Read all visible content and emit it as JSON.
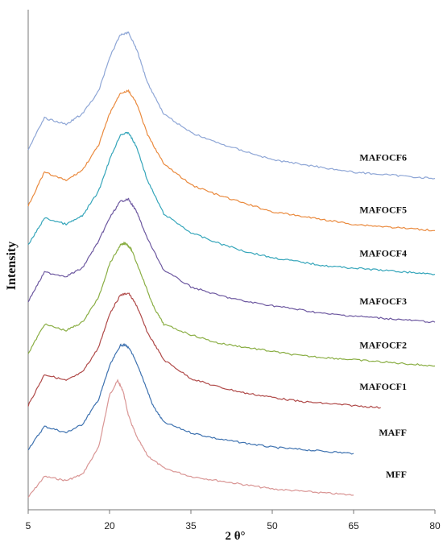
{
  "chart_data": {
    "type": "line",
    "title": "",
    "xlabel": "2 θ°",
    "ylabel": "Intensity",
    "xlim": [
      5,
      80
    ],
    "x_ticks": [
      "5",
      "20",
      "35",
      "50",
      "65",
      "80"
    ],
    "x_tick_values": [
      5,
      20,
      35,
      50,
      65,
      80
    ],
    "grid": false,
    "legend": "none",
    "series": [
      {
        "name": "MFF",
        "color": "#d99594",
        "x": [
          5,
          8,
          12,
          15,
          18,
          20,
          21.5,
          22.5,
          23.5,
          25,
          27,
          30,
          35,
          40,
          45,
          50,
          55,
          60,
          65
        ],
        "y": [
          6,
          16,
          14,
          17,
          30,
          55,
          62,
          57,
          45,
          35,
          26,
          20,
          16,
          14,
          12,
          10,
          9,
          8,
          7
        ]
      },
      {
        "name": "MAFF",
        "color": "#3e72b0",
        "x": [
          5,
          8,
          12,
          15,
          18,
          20,
          22,
          23,
          24,
          26,
          28,
          30,
          35,
          40,
          45,
          50,
          55,
          60,
          65
        ],
        "y": [
          29,
          40,
          37,
          41,
          53,
          69,
          79,
          79,
          76,
          64,
          50,
          42,
          37,
          34,
          32,
          30,
          29,
          28,
          27
        ]
      },
      {
        "name": "MAFOCF1",
        "color": "#b04a49",
        "x": [
          5,
          8,
          12,
          15,
          18,
          20,
          22,
          23.5,
          25,
          27,
          30,
          35,
          40,
          45,
          50,
          55,
          60,
          65,
          70
        ],
        "y": [
          50,
          65,
          62,
          66,
          78,
          94,
          103,
          104,
          98,
          85,
          72,
          63,
          59,
          56,
          54,
          52,
          51,
          50,
          49
        ]
      },
      {
        "name": "MAFOCF2",
        "color": "#8aae44",
        "x": [
          5,
          8,
          12,
          15,
          18,
          20,
          22,
          23,
          24,
          26,
          28,
          30,
          35,
          40,
          45,
          50,
          55,
          60,
          65,
          70,
          75,
          80
        ],
        "y": [
          75,
          89,
          86,
          90,
          102,
          118,
          127,
          128,
          125,
          112,
          98,
          89,
          84,
          80,
          78,
          76,
          74,
          73,
          72,
          71,
          70,
          69
        ]
      },
      {
        "name": "MAFOCF3",
        "color": "#6d58a0",
        "x": [
          5,
          8,
          12,
          15,
          18,
          20,
          22,
          23.5,
          25,
          27,
          30,
          35,
          40,
          45,
          50,
          55,
          60,
          65,
          70,
          75,
          80
        ],
        "y": [
          100,
          114,
          112,
          116,
          129,
          140,
          148,
          149,
          143,
          130,
          115,
          107,
          103,
          100,
          98,
          96,
          94,
          93,
          92,
          91,
          90
        ]
      },
      {
        "name": "MAFOCF4",
        "color": "#34a5ba",
        "x": [
          5,
          8,
          12,
          15,
          18,
          20,
          22,
          23.5,
          25,
          27,
          30,
          35,
          40,
          45,
          50,
          55,
          60,
          65,
          70,
          75,
          80
        ],
        "y": [
          127,
          140,
          137,
          141,
          153,
          168,
          180,
          181,
          174,
          158,
          142,
          133,
          128,
          124,
          121,
          119,
          117,
          116,
          115,
          114,
          113
        ]
      },
      {
        "name": "MAFOCF5",
        "color": "#ea8a3e",
        "x": [
          5,
          8,
          12,
          15,
          18,
          20,
          22,
          23.5,
          25,
          27,
          30,
          35,
          40,
          45,
          50,
          55,
          60,
          65,
          70,
          75,
          80
        ],
        "y": [
          146,
          162,
          158,
          163,
          175,
          190,
          200,
          201,
          195,
          180,
          166,
          156,
          151,
          147,
          143,
          141,
          139,
          137,
          136,
          135,
          134
        ]
      },
      {
        "name": "MAFOCF6",
        "color": "#8ea6d6",
        "x": [
          5,
          8,
          12,
          15,
          18,
          20,
          22,
          23.5,
          25,
          27,
          30,
          35,
          40,
          45,
          50,
          55,
          60,
          65,
          70,
          75,
          80
        ],
        "y": [
          173,
          188,
          185,
          190,
          201,
          217,
          228,
          229,
          221,
          205,
          190,
          181,
          176,
          172,
          168,
          166,
          164,
          162,
          161,
          160,
          159
        ]
      }
    ]
  }
}
